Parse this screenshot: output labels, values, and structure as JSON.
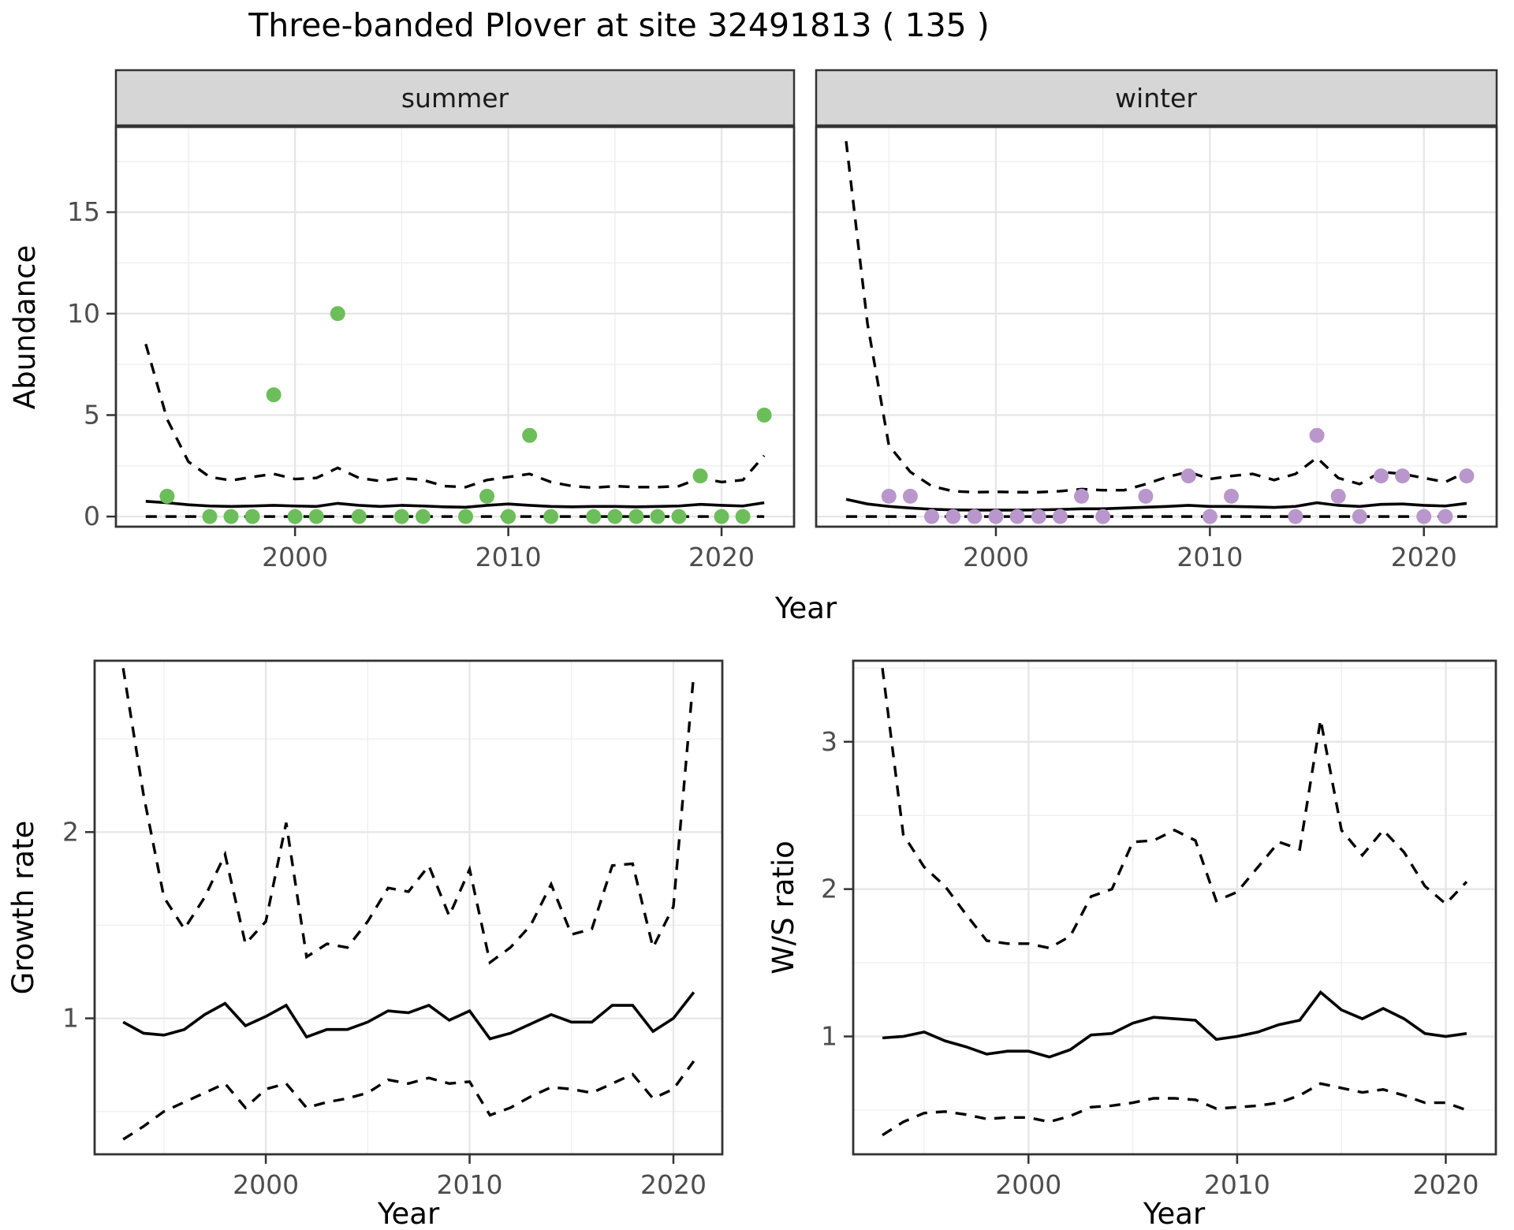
{
  "title": "Three-banded Plover at site 32491813 ( 135 )",
  "colors": {
    "summer_point": "#6cbe5a",
    "winter_point": "#b996cb",
    "fit_line": "#000000",
    "ci_line": "#000000",
    "strip_bg": "#d6d6d6",
    "panel_border": "#333333",
    "grid_major": "#e5e5e5",
    "grid_minor": "#efefef",
    "tick_text": "#4d4d4d"
  },
  "chart_data": [
    {
      "id": "abundance-summer",
      "type": "scatter",
      "facet_label": "summer",
      "ylabel": "Abundance",
      "xlabel": "Year",
      "xlim": [
        1991.6,
        2023.4
      ],
      "ylim": [
        -0.5,
        19.2
      ],
      "xticks": [
        2000,
        2010,
        2020
      ],
      "xminor": [
        1995,
        2005,
        2015
      ],
      "yticks": [
        0,
        5,
        10,
        15
      ],
      "yminor": [
        2.5,
        7.5,
        12.5,
        17.5
      ],
      "legend_position": "none",
      "grid": true,
      "points": {
        "color_key": "summer_point",
        "x": [
          1994,
          1996,
          1997,
          1998,
          1999,
          2000,
          2001,
          2002,
          2003,
          2005,
          2006,
          2008,
          2009,
          2010,
          2011,
          2012,
          2014,
          2015,
          2016,
          2017,
          2018,
          2019,
          2020,
          2021,
          2022
        ],
        "y": [
          1,
          0,
          0,
          0,
          6,
          0,
          0,
          10,
          0,
          0,
          0,
          0,
          1,
          0,
          4,
          0,
          0,
          0,
          0,
          0,
          0,
          2,
          0,
          0,
          5
        ]
      },
      "series": [
        {
          "name": "model-fit",
          "style": "solid",
          "x": [
            1993,
            1994,
            1995,
            1996,
            1997,
            1998,
            1999,
            2000,
            2001,
            2002,
            2003,
            2004,
            2005,
            2006,
            2007,
            2008,
            2009,
            2010,
            2011,
            2012,
            2013,
            2014,
            2015,
            2016,
            2017,
            2018,
            2019,
            2020,
            2021,
            2022
          ],
          "values": [
            0.75,
            0.68,
            0.58,
            0.52,
            0.5,
            0.52,
            0.55,
            0.52,
            0.5,
            0.65,
            0.55,
            0.5,
            0.55,
            0.52,
            0.48,
            0.46,
            0.55,
            0.62,
            0.55,
            0.5,
            0.48,
            0.5,
            0.5,
            0.48,
            0.5,
            0.52,
            0.6,
            0.55,
            0.52,
            0.68
          ]
        },
        {
          "name": "upper-ci",
          "style": "dashed",
          "x": [
            1993,
            1994,
            1995,
            1996,
            1997,
            1998,
            1999,
            2000,
            2001,
            2002,
            2003,
            2004,
            2005,
            2006,
            2007,
            2008,
            2009,
            2010,
            2011,
            2012,
            2013,
            2014,
            2015,
            2016,
            2017,
            2018,
            2019,
            2020,
            2021,
            2022
          ],
          "values": [
            8.5,
            4.8,
            2.7,
            1.95,
            1.78,
            1.95,
            2.1,
            1.85,
            1.9,
            2.4,
            1.9,
            1.75,
            1.9,
            1.8,
            1.5,
            1.45,
            1.8,
            1.95,
            2.1,
            1.7,
            1.5,
            1.42,
            1.5,
            1.45,
            1.45,
            1.5,
            1.9,
            1.7,
            1.8,
            3.0
          ]
        },
        {
          "name": "lower-ci",
          "style": "dashed",
          "x": [
            1993,
            1994,
            1995,
            1996,
            1997,
            1998,
            1999,
            2000,
            2001,
            2002,
            2003,
            2004,
            2005,
            2006,
            2007,
            2008,
            2009,
            2010,
            2011,
            2012,
            2013,
            2014,
            2015,
            2016,
            2017,
            2018,
            2019,
            2020,
            2021,
            2022
          ],
          "values": [
            0,
            0,
            0,
            0,
            0,
            0,
            0,
            0,
            0,
            0,
            0,
            0,
            0,
            0,
            0,
            0,
            0,
            0,
            0,
            0,
            0,
            0,
            0,
            0,
            0,
            0,
            0,
            0,
            0,
            0
          ]
        }
      ]
    },
    {
      "id": "abundance-winter",
      "type": "scatter",
      "facet_label": "winter",
      "ylabel": "Abundance",
      "xlabel": "Year",
      "xlim": [
        1991.6,
        2023.4
      ],
      "ylim": [
        -0.5,
        19.2
      ],
      "xticks": [
        2000,
        2010,
        2020
      ],
      "xminor": [
        1995,
        2005,
        2015
      ],
      "yticks": [
        0,
        5,
        10,
        15
      ],
      "yminor": [
        2.5,
        7.5,
        12.5,
        17.5
      ],
      "legend_position": "none",
      "grid": true,
      "points": {
        "color_key": "winter_point",
        "x": [
          1995,
          1996,
          1997,
          1998,
          1999,
          2000,
          2001,
          2002,
          2003,
          2004,
          2005,
          2007,
          2009,
          2010,
          2011,
          2014,
          2015,
          2016,
          2017,
          2018,
          2019,
          2020,
          2021,
          2022
        ],
        "y": [
          1,
          1,
          0,
          0,
          0,
          0,
          0,
          0,
          0,
          1,
          0,
          1,
          2,
          0,
          1,
          0,
          4,
          1,
          0,
          2,
          2,
          0,
          0,
          2
        ]
      },
      "series": [
        {
          "name": "model-fit",
          "style": "solid",
          "x": [
            1993,
            1994,
            1995,
            1996,
            1997,
            1998,
            1999,
            2000,
            2001,
            2002,
            2003,
            2004,
            2005,
            2006,
            2007,
            2008,
            2009,
            2010,
            2011,
            2012,
            2013,
            2014,
            2015,
            2016,
            2017,
            2018,
            2019,
            2020,
            2021,
            2022
          ],
          "values": [
            0.85,
            0.62,
            0.5,
            0.42,
            0.36,
            0.33,
            0.32,
            0.32,
            0.32,
            0.33,
            0.35,
            0.38,
            0.38,
            0.42,
            0.46,
            0.5,
            0.55,
            0.5,
            0.5,
            0.48,
            0.45,
            0.5,
            0.68,
            0.55,
            0.5,
            0.6,
            0.62,
            0.55,
            0.52,
            0.65
          ]
        },
        {
          "name": "upper-ci",
          "style": "dashed",
          "x": [
            1993,
            1994,
            1995,
            1996,
            1997,
            1998,
            1999,
            2000,
            2001,
            2002,
            2003,
            2004,
            2005,
            2006,
            2007,
            2008,
            2009,
            2010,
            2011,
            2012,
            2013,
            2014,
            2015,
            2016,
            2017,
            2018,
            2019,
            2020,
            2021,
            2022
          ],
          "values": [
            18.5,
            9.5,
            3.5,
            2.2,
            1.5,
            1.25,
            1.2,
            1.22,
            1.2,
            1.2,
            1.25,
            1.35,
            1.3,
            1.3,
            1.6,
            1.95,
            2.2,
            1.85,
            2.0,
            2.1,
            1.8,
            2.1,
            2.9,
            1.9,
            1.6,
            2.2,
            2.1,
            1.9,
            1.7,
            2.2
          ]
        },
        {
          "name": "lower-ci",
          "style": "dashed",
          "x": [
            1993,
            1994,
            1995,
            1996,
            1997,
            1998,
            1999,
            2000,
            2001,
            2002,
            2003,
            2004,
            2005,
            2006,
            2007,
            2008,
            2009,
            2010,
            2011,
            2012,
            2013,
            2014,
            2015,
            2016,
            2017,
            2018,
            2019,
            2020,
            2021,
            2022
          ],
          "values": [
            0,
            0,
            0,
            0,
            0,
            0,
            0,
            0,
            0,
            0,
            0,
            0,
            0,
            0,
            0,
            0,
            0,
            0,
            0,
            0,
            0,
            0,
            0,
            0,
            0,
            0,
            0,
            0,
            0,
            0
          ]
        }
      ]
    },
    {
      "id": "growth-rate",
      "type": "line",
      "facet_label": "",
      "ylabel": "Growth rate",
      "xlabel": "Year",
      "xlim": [
        1991.6,
        2022.4
      ],
      "ylim": [
        0.27,
        2.92
      ],
      "xticks": [
        2000,
        2010,
        2020
      ],
      "xminor": [
        1995,
        2005,
        2015
      ],
      "yticks": [
        1,
        2
      ],
      "yminor": [
        0.5,
        1.5,
        2.5
      ],
      "legend_position": "none",
      "grid": true,
      "points": null,
      "series": [
        {
          "name": "growth-rate-median",
          "style": "solid",
          "x": [
            1993,
            1994,
            1995,
            1996,
            1997,
            1998,
            1999,
            2000,
            2001,
            2002,
            2003,
            2004,
            2005,
            2006,
            2007,
            2008,
            2009,
            2010,
            2011,
            2012,
            2013,
            2014,
            2015,
            2016,
            2017,
            2018,
            2019,
            2020,
            2021
          ],
          "values": [
            0.98,
            0.92,
            0.91,
            0.94,
            1.02,
            1.08,
            0.96,
            1.01,
            1.07,
            0.9,
            0.94,
            0.94,
            0.98,
            1.04,
            1.03,
            1.07,
            0.99,
            1.04,
            0.89,
            0.92,
            0.97,
            1.02,
            0.98,
            0.98,
            1.07,
            1.07,
            0.93,
            1.0,
            1.14
          ]
        },
        {
          "name": "upper-ci",
          "style": "dashed",
          "x": [
            1993,
            1994,
            1995,
            1996,
            1997,
            1998,
            1999,
            2000,
            2001,
            2002,
            2003,
            2004,
            2005,
            2006,
            2007,
            2008,
            2009,
            2010,
            2011,
            2012,
            2013,
            2014,
            2015,
            2016,
            2017,
            2018,
            2019,
            2020,
            2021
          ],
          "values": [
            2.88,
            2.2,
            1.65,
            1.48,
            1.65,
            1.88,
            1.4,
            1.52,
            2.05,
            1.33,
            1.4,
            1.38,
            1.52,
            1.7,
            1.68,
            1.82,
            1.55,
            1.8,
            1.3,
            1.38,
            1.5,
            1.72,
            1.45,
            1.48,
            1.82,
            1.83,
            1.38,
            1.6,
            2.85
          ]
        },
        {
          "name": "lower-ci",
          "style": "dashed",
          "x": [
            1993,
            1994,
            1995,
            1996,
            1997,
            1998,
            1999,
            2000,
            2001,
            2002,
            2003,
            2004,
            2005,
            2006,
            2007,
            2008,
            2009,
            2010,
            2011,
            2012,
            2013,
            2014,
            2015,
            2016,
            2017,
            2018,
            2019,
            2020,
            2021
          ],
          "values": [
            0.35,
            0.42,
            0.5,
            0.55,
            0.6,
            0.65,
            0.52,
            0.62,
            0.65,
            0.52,
            0.55,
            0.57,
            0.6,
            0.67,
            0.65,
            0.68,
            0.65,
            0.66,
            0.48,
            0.52,
            0.58,
            0.63,
            0.62,
            0.6,
            0.65,
            0.7,
            0.57,
            0.62,
            0.77
          ]
        }
      ]
    },
    {
      "id": "ws-ratio",
      "type": "line",
      "facet_label": "",
      "ylabel": "W/S ratio",
      "xlabel": "Year",
      "xlim": [
        1991.6,
        2022.4
      ],
      "ylim": [
        0.2,
        3.55
      ],
      "xticks": [
        2000,
        2010,
        2020
      ],
      "xminor": [
        1995,
        2005,
        2015
      ],
      "yticks": [
        1,
        2,
        3
      ],
      "yminor": [
        0.5,
        1.5,
        2.5,
        3.5
      ],
      "legend_position": "none",
      "grid": true,
      "points": null,
      "series": [
        {
          "name": "ws-ratio-median",
          "style": "solid",
          "x": [
            1993,
            1994,
            1995,
            1996,
            1997,
            1998,
            1999,
            2000,
            2001,
            2002,
            2003,
            2004,
            2005,
            2006,
            2007,
            2008,
            2009,
            2010,
            2011,
            2012,
            2013,
            2014,
            2015,
            2016,
            2017,
            2018,
            2019,
            2020,
            2021
          ],
          "values": [
            0.99,
            1.0,
            1.03,
            0.97,
            0.93,
            0.88,
            0.9,
            0.9,
            0.86,
            0.91,
            1.01,
            1.02,
            1.09,
            1.13,
            1.12,
            1.11,
            0.98,
            1.0,
            1.03,
            1.08,
            1.11,
            1.3,
            1.18,
            1.12,
            1.19,
            1.12,
            1.02,
            1.0,
            1.02
          ]
        },
        {
          "name": "upper-ci",
          "style": "dashed",
          "x": [
            1993,
            1994,
            1995,
            1996,
            1997,
            1998,
            1999,
            2000,
            2001,
            2002,
            2003,
            2004,
            2005,
            2006,
            2007,
            2008,
            2009,
            2010,
            2011,
            2012,
            2013,
            2014,
            2015,
            2016,
            2017,
            2018,
            2019,
            2020,
            2021
          ],
          "values": [
            3.5,
            2.37,
            2.15,
            2.02,
            1.83,
            1.65,
            1.63,
            1.63,
            1.6,
            1.68,
            1.95,
            2.0,
            2.32,
            2.33,
            2.4,
            2.33,
            1.92,
            1.98,
            2.15,
            2.32,
            2.27,
            3.15,
            2.4,
            2.23,
            2.4,
            2.25,
            2.02,
            1.9,
            2.05
          ]
        },
        {
          "name": "lower-ci",
          "style": "dashed",
          "x": [
            1993,
            1994,
            1995,
            1996,
            1997,
            1998,
            1999,
            2000,
            2001,
            2002,
            2003,
            2004,
            2005,
            2006,
            2007,
            2008,
            2009,
            2010,
            2011,
            2012,
            2013,
            2014,
            2015,
            2016,
            2017,
            2018,
            2019,
            2020,
            2021
          ],
          "values": [
            0.33,
            0.42,
            0.48,
            0.49,
            0.47,
            0.44,
            0.45,
            0.45,
            0.42,
            0.46,
            0.52,
            0.53,
            0.55,
            0.58,
            0.58,
            0.57,
            0.51,
            0.52,
            0.53,
            0.55,
            0.6,
            0.68,
            0.65,
            0.62,
            0.64,
            0.6,
            0.55,
            0.55,
            0.5
          ]
        }
      ]
    }
  ]
}
